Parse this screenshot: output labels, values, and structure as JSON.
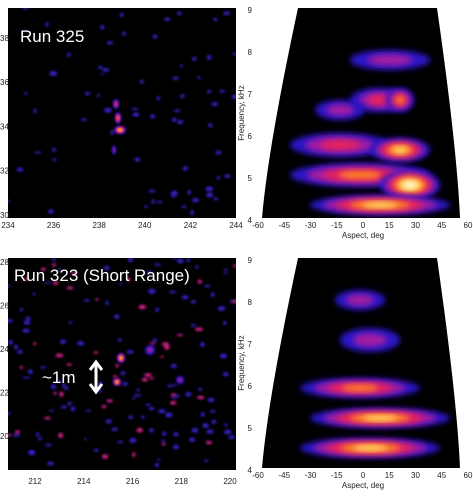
{
  "panels": [
    {
      "label": "Run 325",
      "x_ticks": [
        234,
        236,
        238,
        240,
        242,
        244
      ],
      "y_ticks": [
        38,
        36,
        34,
        32,
        30
      ]
    },
    {
      "x_ticks": [
        -60,
        -45,
        -30,
        -15,
        0,
        15,
        30,
        45,
        60
      ],
      "y_ticks": [
        9,
        8,
        7,
        6,
        5,
        4
      ],
      "x_label": "Aspect, deg",
      "y_label": "Frequency, kHz"
    },
    {
      "label": "Run 323 (Short Range)",
      "annotation": "~1m",
      "x_ticks": [
        212,
        214,
        216,
        218,
        220
      ],
      "y_ticks": [
        28,
        26,
        24,
        22,
        20
      ]
    },
    {
      "x_ticks": [
        -60,
        -45,
        -30,
        -15,
        0,
        15,
        30,
        45,
        60
      ],
      "y_ticks": [
        9,
        8,
        7,
        6,
        5,
        4
      ],
      "x_label": "Aspect, deg",
      "y_label": "Frequency, kHz"
    }
  ]
}
